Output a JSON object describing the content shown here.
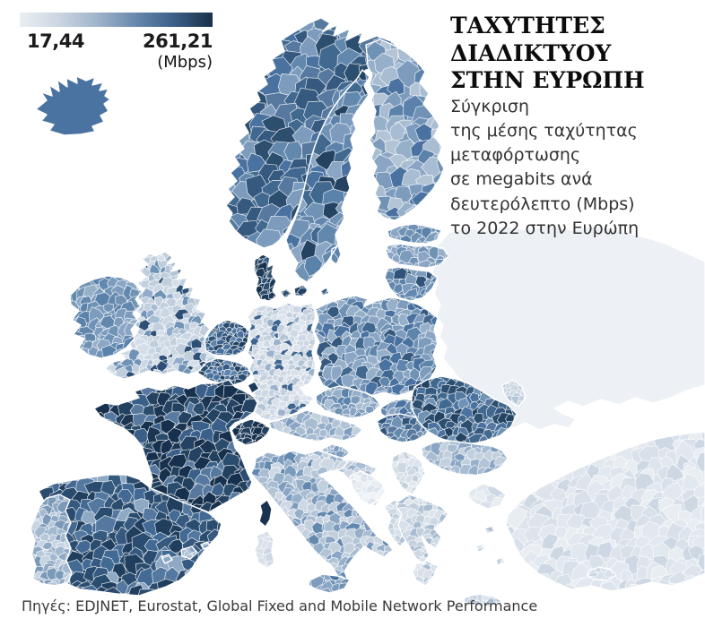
{
  "header": {
    "title_lines": [
      "ΤΑΧΥΤΗΤΕΣ",
      "ΔΙΑΔΙΚΤΥΟΥ",
      "ΣΤΗΝ ΕΥΡΩΠΗ"
    ],
    "subtitle_lines": [
      "Σύγκριση",
      "της μέσης ταχύτητας",
      "μεταφόρτωσης",
      "σε megabits ανά",
      "δευτερόλεπτο (Mbps)",
      "το 2022 στην Ευρώπη"
    ]
  },
  "legend": {
    "min_label": "17,44",
    "max_label": "261,21",
    "unit_label": "(Mbps)",
    "gradient_stops": [
      "#eaeef2",
      "#ccd6e2",
      "#9fb4cb",
      "#6889ad",
      "#3a5f88",
      "#1b3048"
    ]
  },
  "source": "Πηγές: EDJNET, Eurostat, Global Fixed and Mobile Network Performance",
  "chart_data": {
    "type": "choropleth_map",
    "title": "ΤΑΧΥΤΗΤΕΣ ΔΙΑΔΙΚΤΥΟΥ ΣΤΗΝ ΕΥΡΩΠΗ",
    "metric": "Μέση ταχύτητα μεταφόρτωσης, 2022",
    "unit": "Mbps",
    "scale": {
      "min": 17.44,
      "max": 261.21,
      "color_low": "#eaeef2",
      "color_high": "#1b3048"
    },
    "values_estimated_from_shading": true,
    "regions": [
      {
        "id": "eastern",
        "name": "Russia / Belarus / Ukraine (no data)",
        "approx_mbps": null,
        "cell": 0,
        "palette": [
          "#edf0f4"
        ]
      },
      {
        "id": "kaliningrad",
        "name": "Kaliningrad",
        "approx_mbps": 60,
        "cell": 6,
        "palette": [
          "#cdd8e4",
          "#c2cfdd",
          "#b3c4d6"
        ]
      },
      {
        "id": "turkey",
        "name": "Turkey",
        "approx_mbps": 35,
        "cell": 13,
        "palette": [
          "#dde4ec",
          "#e2e8ef",
          "#d8e0ea",
          "#e8edf2",
          "#cdd8e4",
          "#e2e8ef"
        ]
      },
      {
        "id": "cyprus",
        "name": "Cyprus",
        "approx_mbps": 55,
        "cell": 9,
        "palette": [
          "#d8e0ea",
          "#cdd8e4",
          "#c2cfdd"
        ]
      },
      {
        "id": "iceland",
        "name": "Iceland",
        "approx_mbps": 130,
        "cell": 0,
        "palette": [
          "#4a73a2"
        ]
      },
      {
        "id": "norway",
        "name": "Norway",
        "approx_mbps": 140,
        "cell": 17,
        "palette": [
          "#41698f",
          "#4a72a0",
          "#35597f",
          "#57799f",
          "#2c4e6f",
          "#6388ae",
          "#7d9cbd"
        ]
      },
      {
        "id": "sweden",
        "name": "Sweden",
        "approx_mbps": 135,
        "cell": 16,
        "palette": [
          "#5b82ab",
          "#6388ae",
          "#4a72a0",
          "#7d9cbd",
          "#6f92b5",
          "#41698f",
          "#8ba6c5",
          "#244363"
        ]
      },
      {
        "id": "finland",
        "name": "Finland",
        "approx_mbps": 105,
        "cell": 15,
        "palette": [
          "#7d9cbd",
          "#8ba6c5",
          "#6f92b5",
          "#97b0ca",
          "#a8bdd2",
          "#5b82ab",
          "#4a72a0",
          "#b3c4d6"
        ]
      },
      {
        "id": "denmark",
        "name": "Denmark",
        "approx_mbps": 230,
        "cell": 8,
        "palette": [
          "#1d3a59",
          "#244363",
          "#2c4e6f",
          "#16304d",
          "#3a6089"
        ]
      },
      {
        "id": "uk",
        "name": "United Kingdom",
        "approx_mbps": 70,
        "cell": 8,
        "palette": [
          "#bfcddd",
          "#cbd7e3",
          "#a8bdd2",
          "#93accb",
          "#d5dfe9",
          "#bfcddd",
          "#6f92b5",
          "#cbd7e3",
          "#b3c4d6",
          "#2f5076",
          "#c2cfdd",
          "#d5dfe9"
        ]
      },
      {
        "id": "ireland",
        "name": "Ireland",
        "approx_mbps": 110,
        "cell": 10,
        "palette": [
          "#6f92b5",
          "#7d9cbd",
          "#6388ae",
          "#8ba6c5",
          "#5b82ab",
          "#97b0ca"
        ]
      },
      {
        "id": "germany",
        "name": "Germany",
        "approx_mbps": 75,
        "cell": 6.5,
        "palette": [
          "#cdd8e4",
          "#d8e0ea",
          "#c2cfdd",
          "#b3c4d6",
          "#dde4ec",
          "#cdd8e4",
          "#9db3cb",
          "#d8e0ea",
          "#c2cfdd",
          "#3f6690",
          "#cdd8e4",
          "#dde4ec"
        ]
      },
      {
        "id": "netherlands",
        "name": "Netherlands",
        "approx_mbps": 175,
        "cell": 6,
        "palette": [
          "#2f5379",
          "#3b6189",
          "#27486a",
          "#4a72a0",
          "#5b82ab",
          "#203e5e"
        ]
      },
      {
        "id": "belgium",
        "name": "Belgium",
        "approx_mbps": 160,
        "cell": 6,
        "palette": [
          "#2a4c6f",
          "#35597f",
          "#22415f",
          "#4a72a0",
          "#5f85ad"
        ]
      },
      {
        "id": "luxembourg",
        "name": "Luxembourg",
        "approx_mbps": 220,
        "cell": 0,
        "palette": [
          "#1d3a59"
        ]
      },
      {
        "id": "poland",
        "name": "Poland",
        "approx_mbps": 120,
        "cell": 10,
        "palette": [
          "#5f85ad",
          "#4a72a0",
          "#6f92b5",
          "#41698f",
          "#7d9cbd",
          "#8ba6c5",
          "#35597f",
          "#97b0ca"
        ]
      },
      {
        "id": "czechia",
        "name": "Czechia",
        "approx_mbps": 90,
        "cell": 8,
        "palette": [
          "#7d9cbd",
          "#6f92b5",
          "#8ba6c5",
          "#97b0ca",
          "#5b82ab",
          "#a8bdd2"
        ]
      },
      {
        "id": "slovakia",
        "name": "Slovakia",
        "approx_mbps": 115,
        "cell": 8,
        "palette": [
          "#6388ae",
          "#5b82ab",
          "#7d9cbd",
          "#4a72a0",
          "#8ba6c5"
        ]
      },
      {
        "id": "austria",
        "name": "Austria",
        "approx_mbps": 75,
        "cell": 9,
        "palette": [
          "#a8bdd2",
          "#97b0ca",
          "#b3c4d6",
          "#8ba6c5",
          "#c2cfdd",
          "#7d9cbd"
        ]
      },
      {
        "id": "switzerland",
        "name": "Switzerland",
        "approx_mbps": 235,
        "cell": 7,
        "palette": [
          "#16304d",
          "#1d3a59",
          "#22415f",
          "#2a4c6f",
          "#16304d"
        ]
      },
      {
        "id": "hungary",
        "name": "Hungary",
        "approx_mbps": 160,
        "cell": 8,
        "palette": [
          "#4a72a0",
          "#41698f",
          "#57799f",
          "#2f5379",
          "#6388ae",
          "#6f92b5"
        ]
      },
      {
        "id": "slovenia",
        "name": "Slovenia",
        "approx_mbps": 85,
        "cell": 6,
        "palette": [
          "#8ba6c5",
          "#97b0ca",
          "#7d9cbd",
          "#a8bdd2"
        ]
      },
      {
        "id": "croatia",
        "name": "Croatia",
        "approx_mbps": 70,
        "cell": 7,
        "palette": [
          "#b3c4d6",
          "#c2cfdd",
          "#a8bdd2",
          "#97b0ca",
          "#cdd8e4"
        ]
      },
      {
        "id": "bosnia",
        "name": "Bosnia and Herzegovina",
        "approx_mbps": 30,
        "cell": 8,
        "palette": [
          "#e8edf2",
          "#eef2f6",
          "#e2e8ef",
          "#dde4ec"
        ]
      },
      {
        "id": "serbia",
        "name": "Serbia",
        "approx_mbps": 45,
        "cell": 7,
        "palette": [
          "#d8e0ea",
          "#cdd8e4",
          "#dde4ec",
          "#c2cfdd",
          "#e2e8ef"
        ]
      },
      {
        "id": "western-balkans",
        "name": "Montenegro / Kosovo / Albania / North Macedonia",
        "approx_mbps": 50,
        "cell": 7,
        "palette": [
          "#cdd8e4",
          "#c2cfdd",
          "#d8e0ea",
          "#b3c4d6"
        ]
      },
      {
        "id": "romania",
        "name": "Romania",
        "approx_mbps": 185,
        "cell": 9,
        "palette": [
          "#35597f",
          "#2c4e6f",
          "#41698f",
          "#4a72a0",
          "#244363",
          "#57799f",
          "#6f92b5"
        ]
      },
      {
        "id": "moldova",
        "name": "Moldova",
        "approx_mbps": 75,
        "cell": 6,
        "palette": [
          "#c2cfdd",
          "#cdd8e4",
          "#b3c4d6"
        ]
      },
      {
        "id": "bulgaria",
        "name": "Bulgaria",
        "approx_mbps": 85,
        "cell": 9,
        "palette": [
          "#97b0ca",
          "#a8bdd2",
          "#8ba6c5",
          "#b3c4d6",
          "#7d9cbd",
          "#c2cfdd"
        ]
      },
      {
        "id": "greece",
        "name": "Greece",
        "approx_mbps": 50,
        "cell": 8,
        "palette": [
          "#c2cfdd",
          "#cdd8e4",
          "#b3c4d6",
          "#d8e0ea",
          "#a8bdd2",
          "#dde4ec"
        ]
      },
      {
        "id": "spain",
        "name": "Spain",
        "approx_mbps": 200,
        "cell": 13,
        "palette": [
          "#203e5e",
          "#2a4c6f",
          "#35597f",
          "#426a94",
          "#2a4c6f",
          "#203e5e",
          "#54789f",
          "#8fa9c4"
        ]
      },
      {
        "id": "portugal",
        "name": "Portugal",
        "approx_mbps": 95,
        "cell": 8,
        "palette": [
          "#8fa9c4",
          "#a3b9d0",
          "#b7c8da",
          "#7b99b9",
          "#c7d4e2"
        ]
      },
      {
        "id": "balearics",
        "name": "Balearic Islands",
        "approx_mbps": 110,
        "cell": 7,
        "palette": [
          "#8ba6c5",
          "#a8bdd2"
        ]
      },
      {
        "id": "france",
        "name": "France",
        "approx_mbps": 225,
        "cell": 12,
        "palette": [
          "#1b3553",
          "#16304d",
          "#22415f",
          "#2a4c6d",
          "#16304d",
          "#244363",
          "#3a6089",
          "#57799f"
        ]
      },
      {
        "id": "corsica",
        "name": "Corsica",
        "approx_mbps": 240,
        "cell": 0,
        "palette": [
          "#1b3350"
        ]
      },
      {
        "id": "italy",
        "name": "Italy",
        "approx_mbps": 80,
        "cell": 9,
        "palette": [
          "#a8bdd2",
          "#b3c4d6",
          "#97b0ca",
          "#8ba6c5",
          "#c2cfdd",
          "#7d9cbd",
          "#6388ae",
          "#cdd8e4"
        ]
      },
      {
        "id": "sicily",
        "name": "Sicily",
        "approx_mbps": 100,
        "cell": 9,
        "palette": [
          "#7d9cbd",
          "#6f92b5",
          "#8ba6c5",
          "#4a72a0"
        ]
      },
      {
        "id": "sardinia",
        "name": "Sardinia",
        "approx_mbps": 55,
        "cell": 8,
        "palette": [
          "#cdd8e4",
          "#c2cfdd",
          "#d8e0ea"
        ]
      },
      {
        "id": "estonia",
        "name": "Estonia",
        "approx_mbps": 100,
        "cell": 9,
        "palette": [
          "#6f92b5",
          "#7d9cbd",
          "#5b82ab",
          "#8ba6c5"
        ]
      },
      {
        "id": "latvia",
        "name": "Latvia",
        "approx_mbps": 95,
        "cell": 9,
        "palette": [
          "#7d9cbd",
          "#8ba6c5",
          "#6f92b5",
          "#97b0ca"
        ]
      },
      {
        "id": "lithuania",
        "name": "Lithuania",
        "approx_mbps": 110,
        "cell": 9,
        "palette": [
          "#6388ae",
          "#6f92b5",
          "#5b82ab",
          "#7d9cbd",
          "#2f5379"
        ]
      }
    ]
  }
}
